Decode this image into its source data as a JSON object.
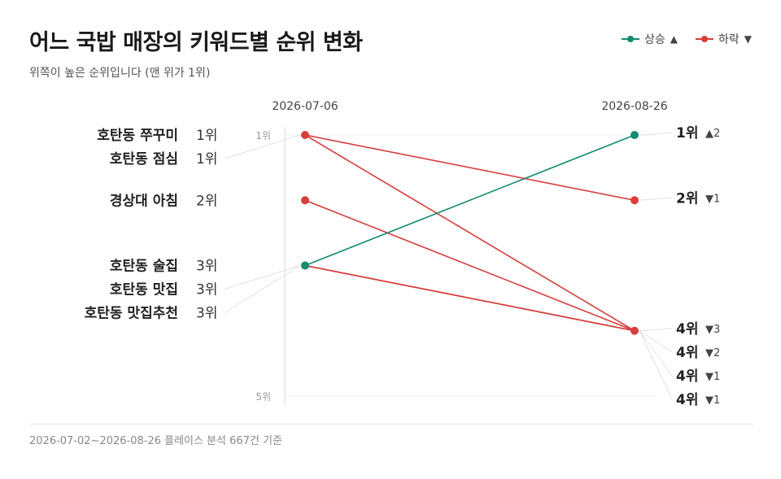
{
  "title": "어느 국밥 매장의 키워드별 순위 변화",
  "subtitle": "위쪽이 높은 순위입니다 (맨 위가 1위)",
  "legend": {
    "up": {
      "label": "상승",
      "symbol": "▲"
    },
    "down": {
      "label": "하락",
      "symbol": "▼"
    }
  },
  "colors": {
    "up": "#138a6e",
    "down": "#d63e3e",
    "axis": "#d8d8d8",
    "grid": "#ececec"
  },
  "footer": "2026-07-02~2026-08-26 플레이스 분석 667건 기준",
  "chart_data": {
    "type": "slope",
    "x": [
      "2026-07-06",
      "2026-08-26"
    ],
    "y_axis": {
      "ticks": [
        "1위",
        "5위"
      ],
      "range": [
        1,
        5
      ],
      "inverted": true
    },
    "rank_suffix": "위",
    "series": [
      {
        "name": "호탄동 쭈꾸미",
        "values": [
          1,
          4
        ],
        "change": "▼3",
        "trend": "down"
      },
      {
        "name": "호탄동 점심",
        "values": [
          1,
          2
        ],
        "change": "▼1",
        "trend": "down"
      },
      {
        "name": "경상대 아침",
        "values": [
          2,
          4
        ],
        "change": "▼2",
        "trend": "down"
      },
      {
        "name": "호탄동 술집",
        "values": [
          3,
          1
        ],
        "change": "▲2",
        "trend": "up"
      },
      {
        "name": "호탄동 맛집",
        "values": [
          3,
          4
        ],
        "change": "▼1",
        "trend": "down"
      },
      {
        "name": "호탄동 맛집추천",
        "values": [
          3,
          4
        ],
        "change": "▼1",
        "trend": "down"
      }
    ],
    "left_labels": [
      {
        "name": "호탄동 쭈꾸미",
        "rank": "1위"
      },
      {
        "name": "호탄동 점심",
        "rank": "1위"
      },
      {
        "name": "경상대 아침",
        "rank": "2위"
      },
      {
        "name": "호탄동 술집",
        "rank": "3위"
      },
      {
        "name": "호탄동 맛집",
        "rank": "3위"
      },
      {
        "name": "호탄동 맛집추천",
        "rank": "3위"
      }
    ],
    "right_labels": [
      {
        "rank": "1위",
        "change": "▲2"
      },
      {
        "rank": "2위",
        "change": "▼1"
      },
      {
        "rank": "4위",
        "change": "▼3"
      },
      {
        "rank": "4위",
        "change": "▼2"
      },
      {
        "rank": "4위",
        "change": "▼1"
      },
      {
        "rank": "4위",
        "change": "▼1"
      }
    ]
  }
}
